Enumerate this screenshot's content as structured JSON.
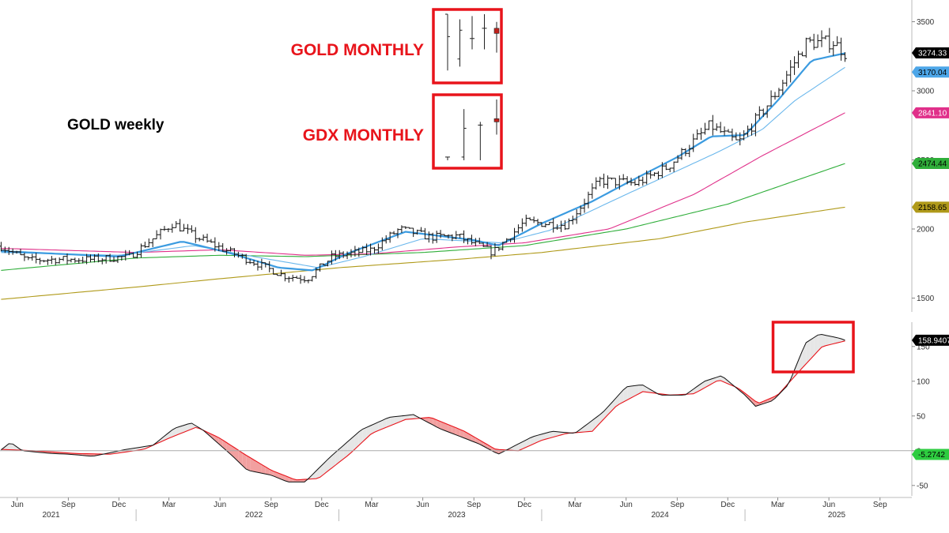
{
  "chart_data": [
    {
      "type": "line",
      "subtype": "weekly-ohlc-with-moving-averages",
      "yscale": "linear",
      "ylim": [
        1400,
        3600
      ],
      "yticks": [
        "1500",
        "2000",
        "2500",
        "3000",
        "3500"
      ],
      "grid": false,
      "annotations": [
        {
          "text": "GOLD weekly",
          "color": "#000000"
        },
        {
          "text": "GOLD MONTHLY",
          "color": "#e8141b"
        },
        {
          "text": "GDX MONTHLY",
          "color": "#e8141b"
        }
      ],
      "last_value_badges": [
        {
          "value": "3274.33",
          "color": "#000000"
        },
        {
          "value": "3170.04",
          "color": "#4da6e8"
        },
        {
          "value": "2841.10",
          "color": "#e0308a"
        },
        {
          "value": "2474.44",
          "color": "#2fae3a"
        },
        {
          "value": "2158.65",
          "color": "#b09a1a"
        }
      ],
      "price_anchors": [
        [
          "2021-05-01",
          1880
        ],
        [
          "2021-06-20",
          1775
        ],
        [
          "2021-08-15",
          1780
        ],
        [
          "2021-10-15",
          1780
        ],
        [
          "2021-12-20",
          1800
        ],
        [
          "2022-03-08",
          2040
        ],
        [
          "2022-04-20",
          1940
        ],
        [
          "2022-06-15",
          1840
        ],
        [
          "2022-08-01",
          1760
        ],
        [
          "2022-09-25",
          1660
        ],
        [
          "2022-11-05",
          1640
        ],
        [
          "2022-12-20",
          1800
        ],
        [
          "2023-03-01",
          1850
        ],
        [
          "2023-04-20",
          2000
        ],
        [
          "2023-06-15",
          1940
        ],
        [
          "2023-08-01",
          1950
        ],
        [
          "2023-10-05",
          1830
        ],
        [
          "2023-12-01",
          2050
        ],
        [
          "2024-02-15",
          2030
        ],
        [
          "2024-04-15",
          2350
        ],
        [
          "2024-06-20",
          2330
        ],
        [
          "2024-08-15",
          2450
        ],
        [
          "2024-10-30",
          2750
        ],
        [
          "2024-12-20",
          2620
        ],
        [
          "2025-02-20",
          2950
        ],
        [
          "2025-04-22",
          3350
        ],
        [
          "2025-06-10",
          3350
        ],
        [
          "2025-06-30",
          3274
        ]
      ],
      "ma_fast_anchors": [
        [
          "2021-05-01",
          1840
        ],
        [
          "2021-12-01",
          1800
        ],
        [
          "2022-03-25",
          1910
        ],
        [
          "2022-06-15",
          1830
        ],
        [
          "2022-09-15",
          1720
        ],
        [
          "2022-11-15",
          1700
        ],
        [
          "2023-01-15",
          1820
        ],
        [
          "2023-05-01",
          1980
        ],
        [
          "2023-09-01",
          1920
        ],
        [
          "2023-10-15",
          1880
        ],
        [
          "2024-01-01",
          2040
        ],
        [
          "2024-04-01",
          2200
        ],
        [
          "2024-06-01",
          2330
        ],
        [
          "2024-09-01",
          2520
        ],
        [
          "2024-11-01",
          2670
        ],
        [
          "2025-01-01",
          2680
        ],
        [
          "2025-03-01",
          2930
        ],
        [
          "2025-05-01",
          3220
        ],
        [
          "2025-06-30",
          3272
        ]
      ],
      "ma_mid_anchors": [
        [
          "2021-05-01",
          1830
        ],
        [
          "2021-12-01",
          1810
        ],
        [
          "2022-04-15",
          1880
        ],
        [
          "2022-08-01",
          1800
        ],
        [
          "2022-11-25",
          1720
        ],
        [
          "2023-02-15",
          1800
        ],
        [
          "2023-06-01",
          1930
        ],
        [
          "2023-10-20",
          1900
        ],
        [
          "2024-01-15",
          1990
        ],
        [
          "2024-06-01",
          2250
        ],
        [
          "2024-11-15",
          2560
        ],
        [
          "2025-02-01",
          2720
        ],
        [
          "2025-04-01",
          2930
        ],
        [
          "2025-06-30",
          3170
        ]
      ],
      "ma_pink_anchors": [
        [
          "2021-05-01",
          1860
        ],
        [
          "2022-01-01",
          1830
        ],
        [
          "2022-06-01",
          1850
        ],
        [
          "2022-11-01",
          1810
        ],
        [
          "2023-03-01",
          1820
        ],
        [
          "2023-08-01",
          1870
        ],
        [
          "2023-12-01",
          1900
        ],
        [
          "2024-05-01",
          2000
        ],
        [
          "2024-10-01",
          2250
        ],
        [
          "2025-02-01",
          2530
        ],
        [
          "2025-06-30",
          2841
        ]
      ],
      "ma_green_anchors": [
        [
          "2021-05-01",
          1700
        ],
        [
          "2022-01-01",
          1790
        ],
        [
          "2022-06-01",
          1810
        ],
        [
          "2022-11-01",
          1800
        ],
        [
          "2023-06-01",
          1830
        ],
        [
          "2023-12-01",
          1880
        ],
        [
          "2024-06-01",
          2000
        ],
        [
          "2024-12-01",
          2180
        ],
        [
          "2025-06-30",
          2474
        ]
      ],
      "ma_olive_anchors": [
        [
          "2021-05-01",
          1490
        ],
        [
          "2022-01-01",
          1580
        ],
        [
          "2022-06-01",
          1640
        ],
        [
          "2023-01-01",
          1720
        ],
        [
          "2023-08-01",
          1780
        ],
        [
          "2024-01-01",
          1830
        ],
        [
          "2024-08-01",
          1930
        ],
        [
          "2025-01-01",
          2050
        ],
        [
          "2025-06-30",
          2158
        ]
      ]
    },
    {
      "type": "area",
      "subtype": "momentum-oscillator-with-signal-line",
      "ylim": [
        -65,
        185
      ],
      "yticks": [
        "-50",
        "0",
        "50",
        "100",
        "150"
      ],
      "zero_line": true,
      "last_value_badges": [
        {
          "value": "158.9407",
          "color": "#000000"
        },
        {
          "value": "-5.2742",
          "color": "#2ecc40"
        }
      ],
      "highlight_box": {
        "x_from": "2025-03-01",
        "x_to": "2025-07-15",
        "color": "#e8141b"
      },
      "fill_colors": {
        "up": "#e6e6e6",
        "down": "#f2a0a0"
      },
      "oscillator_anchors": [
        [
          "2021-05-01",
          0
        ],
        [
          "2021-05-20",
          12
        ],
        [
          "2021-06-10",
          0
        ],
        [
          "2021-08-01",
          -4
        ],
        [
          "2021-09-01",
          -5
        ],
        [
          "2021-10-15",
          -8
        ],
        [
          "2021-12-15",
          2
        ],
        [
          "2022-02-01",
          8
        ],
        [
          "2022-03-10",
          32
        ],
        [
          "2022-04-10",
          40
        ],
        [
          "2022-05-01",
          30
        ],
        [
          "2022-06-20",
          -5
        ],
        [
          "2022-07-20",
          -28
        ],
        [
          "2022-09-01",
          -35
        ],
        [
          "2022-10-01",
          -45
        ],
        [
          "2022-11-01",
          -45
        ],
        [
          "2022-12-15",
          -10
        ],
        [
          "2023-02-10",
          30
        ],
        [
          "2023-04-01",
          48
        ],
        [
          "2023-05-15",
          52
        ],
        [
          "2023-07-01",
          32
        ],
        [
          "2023-09-10",
          10
        ],
        [
          "2023-10-15",
          -5
        ],
        [
          "2023-12-15",
          20
        ],
        [
          "2024-01-20",
          28
        ],
        [
          "2024-03-01",
          25
        ],
        [
          "2024-04-20",
          55
        ],
        [
          "2024-06-01",
          92
        ],
        [
          "2024-06-30",
          95
        ],
        [
          "2024-08-01",
          80
        ],
        [
          "2024-09-15",
          80
        ],
        [
          "2024-10-20",
          100
        ],
        [
          "2024-11-20",
          108
        ],
        [
          "2025-01-01",
          80
        ],
        [
          "2025-01-20",
          64
        ],
        [
          "2025-02-20",
          72
        ],
        [
          "2025-03-20",
          95
        ],
        [
          "2025-04-20",
          155
        ],
        [
          "2025-05-15",
          168
        ],
        [
          "2025-06-20",
          162
        ],
        [
          "2025-06-30",
          158.94
        ]
      ],
      "signal_anchors": [
        [
          "2021-05-01",
          2
        ],
        [
          "2021-07-01",
          0
        ],
        [
          "2021-09-15",
          -4
        ],
        [
          "2021-11-15",
          -5
        ],
        [
          "2022-01-15",
          2
        ],
        [
          "2022-03-01",
          18
        ],
        [
          "2022-04-20",
          34
        ],
        [
          "2022-06-01",
          18
        ],
        [
          "2022-07-15",
          -5
        ],
        [
          "2022-09-01",
          -28
        ],
        [
          "2022-10-15",
          -42
        ],
        [
          "2022-11-25",
          -40
        ],
        [
          "2023-01-20",
          -5
        ],
        [
          "2023-03-01",
          25
        ],
        [
          "2023-05-01",
          45
        ],
        [
          "2023-06-15",
          48
        ],
        [
          "2023-08-15",
          28
        ],
        [
          "2023-10-10",
          2
        ],
        [
          "2023-11-20",
          0
        ],
        [
          "2024-01-01",
          15
        ],
        [
          "2024-02-15",
          25
        ],
        [
          "2024-04-01",
          28
        ],
        [
          "2024-05-15",
          65
        ],
        [
          "2024-07-01",
          85
        ],
        [
          "2024-08-20",
          80
        ],
        [
          "2024-10-01",
          82
        ],
        [
          "2024-11-15",
          102
        ],
        [
          "2024-12-20",
          90
        ],
        [
          "2025-01-25",
          68
        ],
        [
          "2025-03-01",
          80
        ],
        [
          "2025-04-15",
          120
        ],
        [
          "2025-05-20",
          150
        ],
        [
          "2025-06-30",
          158
        ]
      ]
    }
  ],
  "x_axis": {
    "months": [
      {
        "date": "2021-06-01",
        "label": "Jun"
      },
      {
        "date": "2021-09-01",
        "label": "Sep"
      },
      {
        "date": "2021-12-01",
        "label": "Dec"
      },
      {
        "date": "2022-03-01",
        "label": "Mar"
      },
      {
        "date": "2022-06-01",
        "label": "Jun"
      },
      {
        "date": "2022-09-01",
        "label": "Sep"
      },
      {
        "date": "2022-12-01",
        "label": "Dec"
      },
      {
        "date": "2023-03-01",
        "label": "Mar"
      },
      {
        "date": "2023-06-01",
        "label": "Jun"
      },
      {
        "date": "2023-09-01",
        "label": "Sep"
      },
      {
        "date": "2023-12-01",
        "label": "Dec"
      },
      {
        "date": "2024-03-01",
        "label": "Mar"
      },
      {
        "date": "2024-06-01",
        "label": "Jun"
      },
      {
        "date": "2024-09-01",
        "label": "Sep"
      },
      {
        "date": "2024-12-01",
        "label": "Dec"
      },
      {
        "date": "2025-03-01",
        "label": "Mar"
      },
      {
        "date": "2025-06-01",
        "label": "Jun"
      },
      {
        "date": "2025-09-01",
        "label": "Sep"
      }
    ],
    "years": [
      {
        "date": "2021-08-01",
        "label": "2021"
      },
      {
        "date": "2022-08-01",
        "label": "2022"
      },
      {
        "date": "2023-08-01",
        "label": "2023"
      },
      {
        "date": "2024-08-01",
        "label": "2024"
      },
      {
        "date": "2025-06-15",
        "label": "2025"
      }
    ],
    "year_dividers": [
      "2022-01-01",
      "2023-01-01",
      "2024-01-01",
      "2025-01-01"
    ]
  },
  "insets": [
    {
      "title": "GOLD MONTHLY",
      "bars": [
        {
          "o": 1,
          "h": 1,
          "l": 0.12,
          "c": 0.65
        },
        {
          "o": 0.3,
          "h": 0.92,
          "l": 0.18,
          "c": 0.75
        },
        {
          "o": 0.62,
          "h": 0.97,
          "l": 0.45,
          "c": 0.62
        },
        {
          "o": 0.78,
          "h": 1.0,
          "l": 0.45,
          "c": 0.78
        },
        {
          "o": 0.78,
          "h": 0.88,
          "l": 0.4,
          "c": 0.7,
          "bear": true
        }
      ]
    },
    {
      "title": "GDX MONTHLY",
      "bars": [
        {
          "o": 0.1,
          "h": 0.1,
          "l": 0.05,
          "c": 0.1
        },
        {
          "o": 0.1,
          "h": 0.85,
          "l": 0.05,
          "c": 0.55
        },
        {
          "o": 0.6,
          "h": 0.65,
          "l": 0.05,
          "c": 0.6
        },
        {
          "o": 0.7,
          "h": 1.0,
          "l": 0.45,
          "c": 0.65,
          "bear": true
        }
      ]
    }
  ],
  "colors": {
    "price": "#111111",
    "ma_fast": "#3b9be0",
    "ma_mid": "#6ab7ec",
    "ma_pink": "#e0308a",
    "ma_green": "#2fae3a",
    "ma_olive": "#b09a1a",
    "signal": "#e8141b",
    "oscillator": "#111111",
    "box": "#e8141b",
    "zero_line": "#aaaaaa",
    "axis": "#bbbbbb"
  }
}
